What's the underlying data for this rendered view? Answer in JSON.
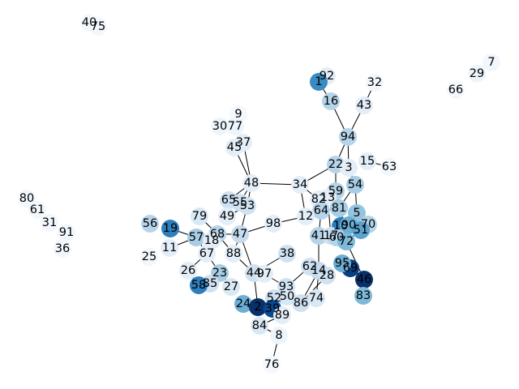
{
  "graph": {
    "nodes": [
      {
        "id": "40",
        "v": 0.02
      },
      {
        "id": "75",
        "v": 0.03
      },
      {
        "id": "7",
        "v": 0.03
      },
      {
        "id": "29",
        "v": 0.05
      },
      {
        "id": "66",
        "v": 0.03
      },
      {
        "id": "92",
        "v": 0.1
      },
      {
        "id": "1",
        "v": 0.65
      },
      {
        "id": "32",
        "v": 0.03
      },
      {
        "id": "16",
        "v": 0.3
      },
      {
        "id": "43",
        "v": 0.1
      },
      {
        "id": "9",
        "v": 0.02
      },
      {
        "id": "30",
        "v": 0.05
      },
      {
        "id": "77",
        "v": 0.05
      },
      {
        "id": "37",
        "v": 0.1
      },
      {
        "id": "45",
        "v": 0.1
      },
      {
        "id": "94",
        "v": 0.3
      },
      {
        "id": "15",
        "v": 0.1
      },
      {
        "id": "63",
        "v": 0.03
      },
      {
        "id": "22",
        "v": 0.3
      },
      {
        "id": "3",
        "v": 0.1
      },
      {
        "id": "54",
        "v": 0.35
      },
      {
        "id": "48",
        "v": 0.1
      },
      {
        "id": "34",
        "v": 0.1
      },
      {
        "id": "59",
        "v": 0.3
      },
      {
        "id": "82",
        "v": 0.1
      },
      {
        "id": "13",
        "v": 0.1
      },
      {
        "id": "65",
        "v": 0.2
      },
      {
        "id": "55",
        "v": 0.2
      },
      {
        "id": "53",
        "v": 0.2
      },
      {
        "id": "81",
        "v": 0.35
      },
      {
        "id": "5",
        "v": 0.4
      },
      {
        "id": "80",
        "v": 0.03
      },
      {
        "id": "61",
        "v": 0.03
      },
      {
        "id": "79",
        "v": 0.15
      },
      {
        "id": "49",
        "v": 0.1
      },
      {
        "id": "64",
        "v": 0.3
      },
      {
        "id": "12",
        "v": 0.1
      },
      {
        "id": "98",
        "v": 0.1
      },
      {
        "id": "56",
        "v": 0.3
      },
      {
        "id": "19",
        "v": 0.7
      },
      {
        "id": "57",
        "v": 0.35
      },
      {
        "id": "68",
        "v": 0.3
      },
      {
        "id": "47",
        "v": 0.25
      },
      {
        "id": "10",
        "v": 0.7
      },
      {
        "id": "90",
        "v": 0.5
      },
      {
        "id": "70",
        "v": 0.3
      },
      {
        "id": "51",
        "v": 0.55
      },
      {
        "id": "31",
        "v": 0.03
      },
      {
        "id": "91",
        "v": 0.03
      },
      {
        "id": "18",
        "v": 0.1
      },
      {
        "id": "41",
        "v": 0.3
      },
      {
        "id": "17",
        "v": 0.2
      },
      {
        "id": "60",
        "v": 0.3
      },
      {
        "id": "72",
        "v": 0.45
      },
      {
        "id": "11",
        "v": 0.1
      },
      {
        "id": "36",
        "v": 0.03
      },
      {
        "id": "25",
        "v": 0.03
      },
      {
        "id": "67",
        "v": 0.1
      },
      {
        "id": "88",
        "v": 0.1
      },
      {
        "id": "38",
        "v": 0.2
      },
      {
        "id": "26",
        "v": 0.1
      },
      {
        "id": "62",
        "v": 0.2
      },
      {
        "id": "44",
        "v": 0.2
      },
      {
        "id": "97",
        "v": 0.1
      },
      {
        "id": "14",
        "v": 0.25
      },
      {
        "id": "28",
        "v": 0.2
      },
      {
        "id": "69",
        "v": 0.95
      },
      {
        "id": "95",
        "v": 0.5
      },
      {
        "id": "23",
        "v": 0.35
      },
      {
        "id": "85",
        "v": 0.2
      },
      {
        "id": "58",
        "v": 0.7
      },
      {
        "id": "27",
        "v": 0.15
      },
      {
        "id": "93",
        "v": 0.2
      },
      {
        "id": "46",
        "v": 1.0
      },
      {
        "id": "50",
        "v": 0.15
      },
      {
        "id": "83",
        "v": 0.45
      },
      {
        "id": "52",
        "v": 0.2
      },
      {
        "id": "86",
        "v": 0.2
      },
      {
        "id": "74",
        "v": 0.15
      },
      {
        "id": "24",
        "v": 0.5
      },
      {
        "id": "2",
        "v": 1.0
      },
      {
        "id": "39",
        "v": 0.9
      },
      {
        "id": "89",
        "v": 0.1
      },
      {
        "id": "84",
        "v": 0.15
      },
      {
        "id": "8",
        "v": 0.05
      },
      {
        "id": "76",
        "v": 0.02
      }
    ],
    "edges": [
      [
        "1",
        "92"
      ],
      [
        "1",
        "16"
      ],
      [
        "16",
        "94"
      ],
      [
        "43",
        "32"
      ],
      [
        "43",
        "94"
      ],
      [
        "94",
        "22"
      ],
      [
        "94",
        "3"
      ],
      [
        "22",
        "34"
      ],
      [
        "22",
        "59"
      ],
      [
        "3",
        "54"
      ],
      [
        "15",
        "63"
      ],
      [
        "48",
        "45"
      ],
      [
        "48",
        "37"
      ],
      [
        "48",
        "34"
      ],
      [
        "48",
        "65"
      ],
      [
        "48",
        "55"
      ],
      [
        "48",
        "53"
      ],
      [
        "34",
        "82"
      ],
      [
        "34",
        "12"
      ],
      [
        "59",
        "13"
      ],
      [
        "59",
        "81"
      ],
      [
        "54",
        "5"
      ],
      [
        "54",
        "81"
      ],
      [
        "5",
        "90"
      ],
      [
        "5",
        "70"
      ],
      [
        "5",
        "51"
      ],
      [
        "81",
        "64"
      ],
      [
        "81",
        "10"
      ],
      [
        "12",
        "98"
      ],
      [
        "12",
        "64"
      ],
      [
        "98",
        "47"
      ],
      [
        "64",
        "41"
      ],
      [
        "13",
        "17"
      ],
      [
        "13",
        "90"
      ],
      [
        "47",
        "53"
      ],
      [
        "47",
        "44"
      ],
      [
        "47",
        "68"
      ],
      [
        "47",
        "88"
      ],
      [
        "49",
        "53"
      ],
      [
        "79",
        "68"
      ],
      [
        "19",
        "57"
      ],
      [
        "57",
        "11"
      ],
      [
        "57",
        "68"
      ],
      [
        "57",
        "67"
      ],
      [
        "68",
        "88"
      ],
      [
        "18",
        "67"
      ],
      [
        "88",
        "44"
      ],
      [
        "67",
        "26"
      ],
      [
        "67",
        "23"
      ],
      [
        "23",
        "27"
      ],
      [
        "85",
        "58"
      ],
      [
        "26",
        "58"
      ],
      [
        "44",
        "2"
      ],
      [
        "44",
        "97"
      ],
      [
        "97",
        "93"
      ],
      [
        "93",
        "50"
      ],
      [
        "50",
        "39"
      ],
      [
        "38",
        "44"
      ],
      [
        "41",
        "14"
      ],
      [
        "41",
        "60"
      ],
      [
        "14",
        "62"
      ],
      [
        "14",
        "28"
      ],
      [
        "14",
        "86"
      ],
      [
        "14",
        "74"
      ],
      [
        "95",
        "69"
      ],
      [
        "69",
        "46"
      ],
      [
        "46",
        "83"
      ],
      [
        "72",
        "46"
      ],
      [
        "60",
        "72"
      ],
      [
        "51",
        "72"
      ],
      [
        "62",
        "52"
      ],
      [
        "28",
        "86"
      ],
      [
        "2",
        "24"
      ],
      [
        "2",
        "39"
      ],
      [
        "39",
        "89"
      ],
      [
        "89",
        "84"
      ],
      [
        "84",
        "8"
      ],
      [
        "8",
        "76"
      ],
      [
        "52",
        "50"
      ],
      [
        "24",
        "2"
      ]
    ]
  }
}
